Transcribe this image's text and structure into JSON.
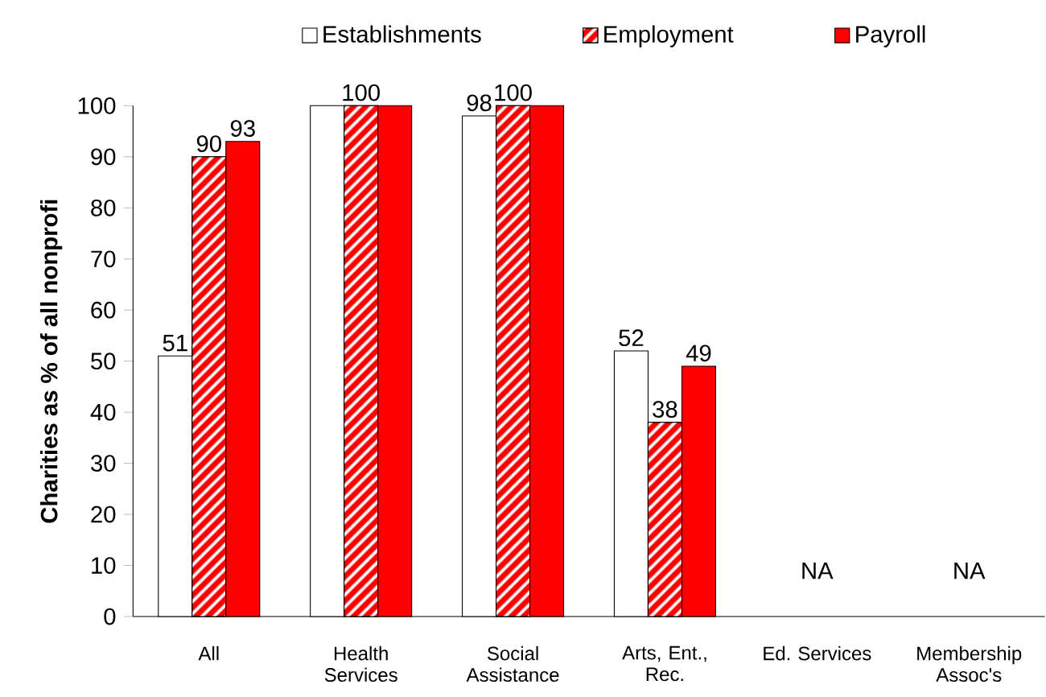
{
  "chart_data": {
    "type": "bar",
    "ylabel": "Charities as % of all nonprofi",
    "categories": [
      "All",
      "Health Services",
      "Social Assistance",
      "Arts, Ent., Rec.",
      "Ed. Services",
      "Membership Assoc's"
    ],
    "series": [
      {
        "name": "Establishments",
        "color": "#ffffff",
        "values": [
          51,
          100,
          98,
          52,
          null,
          null
        ],
        "value_labels": [
          "51",
          null,
          "98",
          "52",
          null,
          null
        ]
      },
      {
        "name": "Employment",
        "color": "#ff0000",
        "values": [
          90,
          100,
          100,
          38,
          null,
          null
        ],
        "value_labels": [
          "90",
          "100",
          "100",
          "38",
          null,
          null
        ]
      },
      {
        "name": "Payroll",
        "color": "#ff0000",
        "values": [
          93,
          100,
          100,
          49,
          null,
          null
        ],
        "value_labels": [
          "93",
          null,
          null,
          "49",
          null,
          null
        ]
      }
    ],
    "annotations": [
      "NA",
      "NA"
    ],
    "ylim": [
      0,
      100
    ],
    "yticks": [
      0,
      10,
      20,
      30,
      40,
      50,
      60,
      70,
      80,
      90,
      100
    ],
    "legend": "top",
    "grid": false
  }
}
